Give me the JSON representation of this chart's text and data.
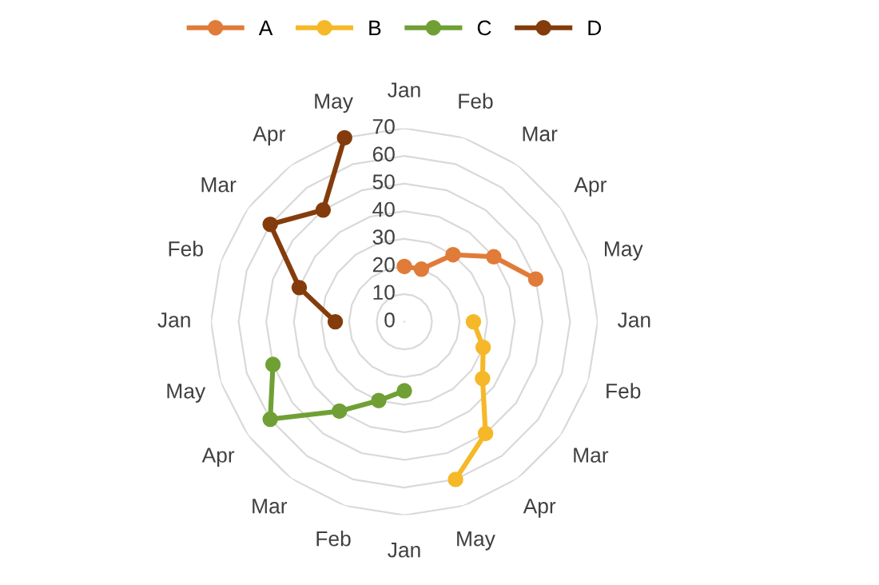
{
  "chart_data": {
    "type": "radar",
    "categories": [
      "Jan",
      "Feb",
      "Mar",
      "Apr",
      "May",
      "Jan",
      "Feb",
      "Mar",
      "Apr",
      "May",
      "Jan",
      "Feb",
      "Mar",
      "Apr",
      "May",
      "Jan",
      "Feb",
      "Mar",
      "Apr",
      "May"
    ],
    "series": [
      {
        "name": "A",
        "color": "#e07b39",
        "values": [
          20,
          20,
          30,
          40,
          50,
          null,
          null,
          null,
          null,
          null,
          null,
          null,
          null,
          null,
          null,
          null,
          null,
          null,
          null,
          null
        ]
      },
      {
        "name": "B",
        "color": "#f5b829",
        "values": [
          null,
          null,
          null,
          null,
          null,
          25,
          30,
          35,
          50,
          60,
          null,
          null,
          null,
          null,
          null,
          null,
          null,
          null,
          null,
          null
        ]
      },
      {
        "name": "C",
        "color": "#70a035",
        "values": [
          null,
          null,
          null,
          null,
          null,
          null,
          null,
          null,
          null,
          null,
          25,
          30,
          40,
          60,
          50,
          null,
          null,
          null,
          null,
          null
        ]
      },
      {
        "name": "D",
        "color": "#843c0c",
        "values": [
          null,
          null,
          null,
          null,
          null,
          null,
          null,
          null,
          null,
          null,
          null,
          null,
          null,
          null,
          null,
          25,
          40,
          60,
          50,
          70
        ]
      }
    ],
    "ylim": [
      0,
      70
    ],
    "yticks": [
      0,
      10,
      20,
      30,
      40,
      50,
      60,
      70
    ],
    "grid": true,
    "legend": "top",
    "marker": "circle",
    "line_style": "solid"
  }
}
